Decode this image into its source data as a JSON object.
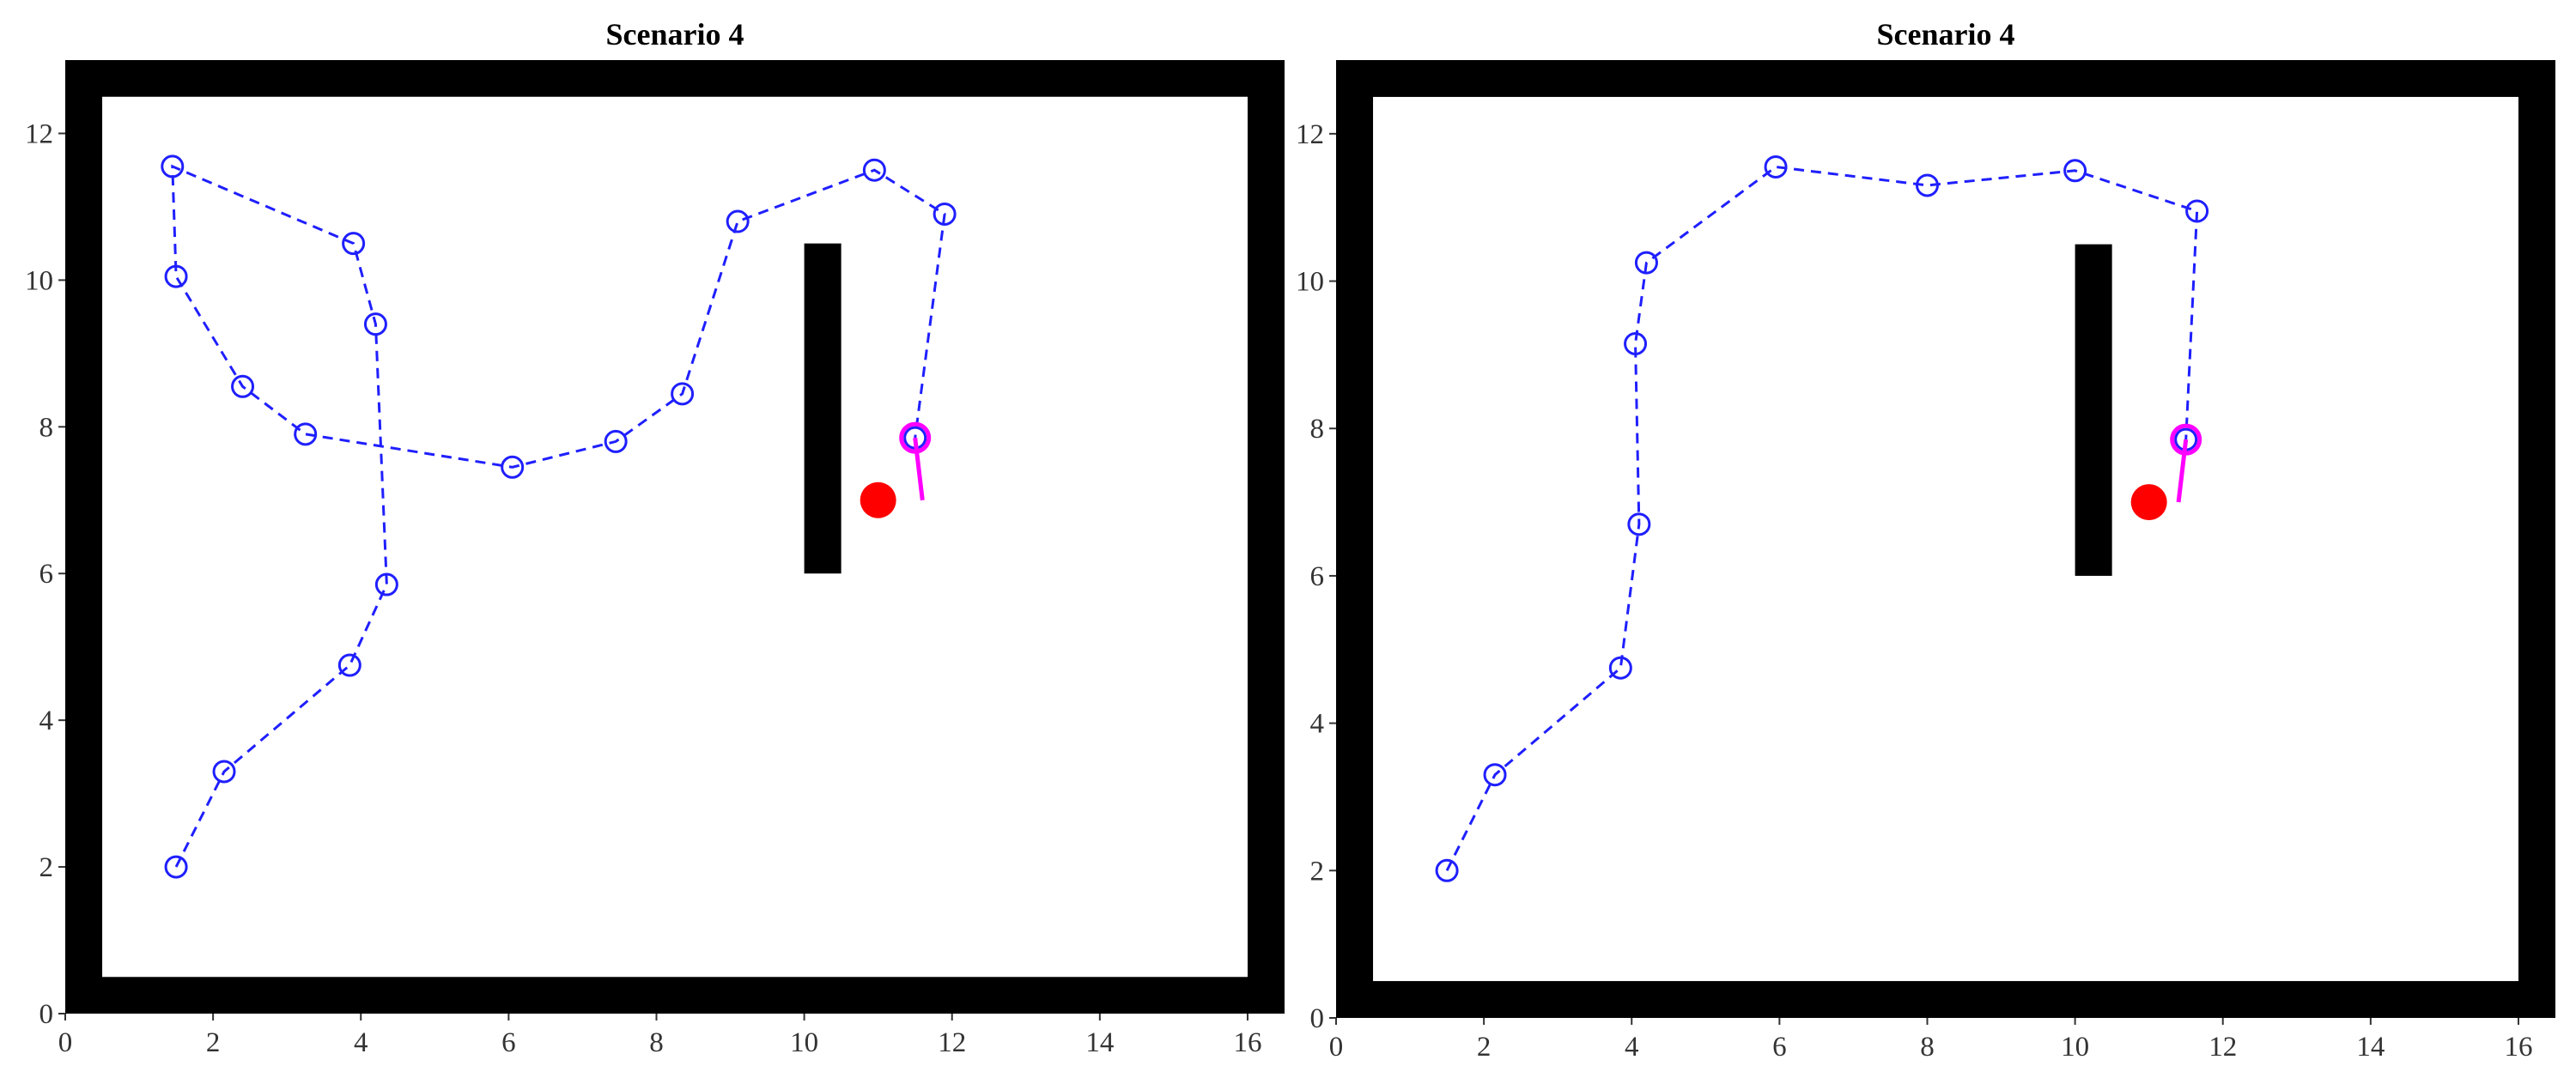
{
  "chart_data": [
    {
      "type": "scatter",
      "title": "Scenario 4",
      "xlabel": "",
      "ylabel": "",
      "xlim": [
        0,
        16.5
      ],
      "ylim": [
        0,
        13
      ],
      "xticks": [
        0,
        2,
        4,
        6,
        8,
        10,
        12,
        14,
        16
      ],
      "yticks": [
        0,
        2,
        4,
        6,
        8,
        10,
        12
      ],
      "grid": false,
      "legend": "none",
      "walls": [
        {
          "x": [
            0,
            16.5
          ],
          "y": [
            0,
            0.5
          ]
        },
        {
          "x": [
            0,
            16.5
          ],
          "y": [
            12.5,
            13
          ]
        },
        {
          "x": [
            0,
            0.5
          ],
          "y": [
            0,
            13
          ]
        },
        {
          "x": [
            16,
            16.5
          ],
          "y": [
            0,
            13
          ]
        },
        {
          "x": [
            10,
            10.5
          ],
          "y": [
            6,
            10.5
          ]
        }
      ],
      "path": {
        "color": "#1f1fff",
        "marker": "circle",
        "x": [
          1.5,
          2.15,
          3.85,
          4.35,
          4.2,
          3.9,
          1.45,
          1.5,
          2.4,
          3.25,
          6.05,
          7.45,
          8.35,
          9.1,
          10.95,
          11.9,
          11.5
        ],
        "y": [
          2.0,
          3.3,
          4.75,
          5.85,
          9.4,
          10.5,
          11.55,
          10.05,
          8.55,
          7.9,
          7.45,
          7.8,
          8.45,
          10.8,
          11.5,
          10.9,
          7.85
        ]
      },
      "goal": {
        "x": 11.0,
        "y": 7.0,
        "color": "#ff0000"
      },
      "robot": {
        "x": 11.5,
        "y": 7.85,
        "heading_end": [
          11.6,
          7.0
        ],
        "color": "#ff00ff"
      }
    },
    {
      "type": "scatter",
      "title": "Scenario 4",
      "xlabel": "",
      "ylabel": "",
      "xlim": [
        0,
        16.5
      ],
      "ylim": [
        0,
        13
      ],
      "xticks": [
        0,
        2,
        4,
        6,
        8,
        10,
        12,
        14,
        16
      ],
      "yticks": [
        0,
        2,
        4,
        6,
        8,
        10,
        12
      ],
      "grid": false,
      "legend": "none",
      "walls": [
        {
          "x": [
            0,
            16.5
          ],
          "y": [
            0,
            0.5
          ]
        },
        {
          "x": [
            0,
            16.5
          ],
          "y": [
            12.5,
            13
          ]
        },
        {
          "x": [
            0,
            0.5
          ],
          "y": [
            0,
            13
          ]
        },
        {
          "x": [
            16,
            16.5
          ],
          "y": [
            0,
            13
          ]
        },
        {
          "x": [
            10,
            10.5
          ],
          "y": [
            6,
            10.5
          ]
        }
      ],
      "path": {
        "color": "#1f1fff",
        "marker": "circle",
        "x": [
          1.5,
          2.15,
          3.85,
          4.1,
          4.05,
          4.2,
          5.95,
          8.0,
          10.0,
          11.65,
          11.5
        ],
        "y": [
          2.0,
          3.3,
          4.75,
          6.7,
          9.15,
          10.25,
          11.55,
          11.3,
          11.5,
          10.95,
          7.85
        ]
      },
      "goal": {
        "x": 11.0,
        "y": 7.0,
        "color": "#ff0000"
      },
      "robot": {
        "x": 11.5,
        "y": 7.85,
        "heading_end": [
          11.4,
          7.0
        ],
        "color": "#ff00ff"
      }
    }
  ]
}
